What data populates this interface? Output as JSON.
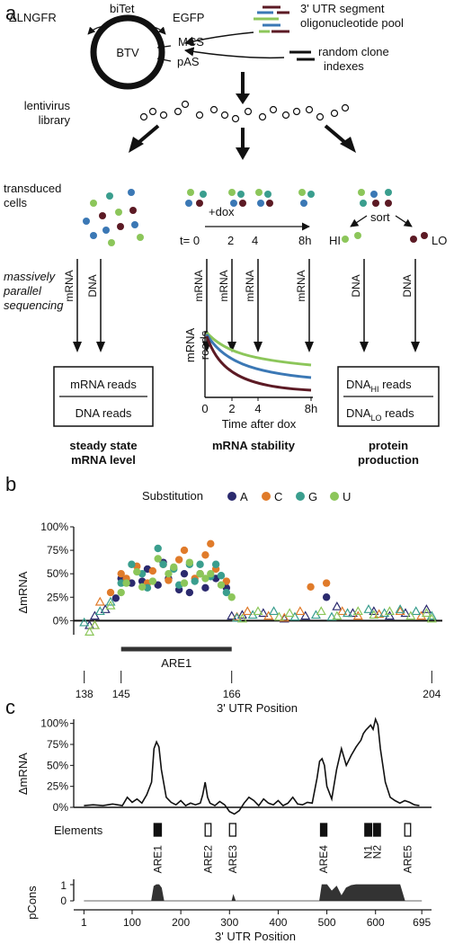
{
  "colors": {
    "A": "#2b2a6e",
    "C": "#e07b2a",
    "G": "#3a9e8e",
    "U": "#8cc65a",
    "maroon": "#5c1a24",
    "blue": "#3b78b5",
    "green": "#8cc65a",
    "black": "#111111"
  },
  "panel_a": {
    "label": "a",
    "vector": {
      "name": "BTV",
      "dlngfr": "ΔLNGFR",
      "bitet": "biTet",
      "egfp": "EGFP",
      "mcs": "MCS",
      "pas": "pAS"
    },
    "legend": {
      "utr_segment": "3' UTR segment",
      "oligo_pool": "oligonucleotide pool",
      "random_clone": "random clone",
      "indexes": "indexes"
    },
    "lentivirus": [
      "lentivirus",
      "library"
    ],
    "transduced": [
      "transduced",
      "cells"
    ],
    "mps": [
      "massively",
      "parallel",
      "sequencing"
    ],
    "dox": "+dox",
    "timepoints": [
      "t= 0",
      "2",
      "4",
      "8h"
    ],
    "sort": "sort",
    "hi": "HI",
    "lo": "LO",
    "seq_labels": {
      "mrna": "mRNA",
      "dna": "DNA"
    },
    "box_left": {
      "top": "mRNA reads",
      "bottom": "DNA reads"
    },
    "box_right": {
      "top_main": "DNA",
      "top_sub": "HI",
      "top_rest": " reads",
      "bottom_main": "DNA",
      "bottom_sub": "LO",
      "bottom_rest": " reads"
    },
    "decay_plot": {
      "ylabel": [
        "mRNA",
        "reads"
      ],
      "xticks": [
        "0",
        "2",
        "4",
        "8h"
      ],
      "xlabel": "Time after dox"
    },
    "outcomes": [
      [
        "steady state",
        "mRNA level"
      ],
      [
        "mRNA stability"
      ],
      [
        "protein",
        "production"
      ]
    ]
  },
  "panel_b": {
    "label": "b",
    "legend_title": "Substitution",
    "legend_items": [
      "A",
      "C",
      "G",
      "U"
    ]
  },
  "panel_c": {
    "label": "c",
    "elements_label": "Elements",
    "pcons_label": "pCons",
    "pcons_ticks": [
      "1",
      "0"
    ],
    "element_names": [
      "ARE1",
      "ARE2",
      "ARE3",
      "ARE4",
      "N1",
      "N2",
      "ARE5"
    ]
  },
  "chart_data": [
    {
      "type": "scatter",
      "title": "",
      "xlabel": "3' UTR Position",
      "ylabel": "ΔmRNA",
      "xticks": [
        "138",
        "145",
        "166",
        "204"
      ],
      "yticks": [
        "100%",
        "75%",
        "50%",
        "25%",
        "0%"
      ],
      "ylim": [
        -0.15,
        1.0
      ],
      "annotation": {
        "label": "ARE1",
        "start": 145,
        "end": 166
      },
      "marker_note": "filled circle = significant, open triangle = not significant",
      "series": [
        {
          "name": "A",
          "points": [
            [
              139,
              -0.05
            ],
            [
              140,
              0.05
            ],
            [
              142,
              0.12
            ],
            [
              144,
              0.24
            ],
            [
              145,
              0.45
            ],
            [
              147,
              0.4
            ],
            [
              149,
              0.42
            ],
            [
              150,
              0.55
            ],
            [
              152,
              0.38
            ],
            [
              153,
              0.62
            ],
            [
              154,
              0.45
            ],
            [
              156,
              0.33
            ],
            [
              157,
              0.5
            ],
            [
              158,
              0.3
            ],
            [
              160,
              0.5
            ],
            [
              161,
              0.35
            ],
            [
              163,
              0.45
            ],
            [
              165,
              0.35
            ],
            [
              166,
              0.05
            ],
            [
              168,
              0.06
            ],
            [
              172,
              0.08
            ],
            [
              176,
              0.02
            ],
            [
              180,
              0.05
            ],
            [
              184,
              0.25
            ],
            [
              186,
              0.15
            ],
            [
              189,
              0.08
            ],
            [
              193,
              0.1
            ],
            [
              196,
              0.05
            ],
            [
              199,
              0.08
            ],
            [
              203,
              0.12
            ]
          ]
        },
        {
          "name": "C",
          "points": [
            [
              140,
              -0.05
            ],
            [
              141,
              0.2
            ],
            [
              143,
              0.3
            ],
            [
              145,
              0.5
            ],
            [
              146,
              0.45
            ],
            [
              148,
              0.58
            ],
            [
              150,
              0.4
            ],
            [
              151,
              0.53
            ],
            [
              153,
              0.6
            ],
            [
              154,
              0.43
            ],
            [
              156,
              0.65
            ],
            [
              157,
              0.75
            ],
            [
              159,
              0.45
            ],
            [
              160,
              0.5
            ],
            [
              161,
              0.7
            ],
            [
              162,
              0.82
            ],
            [
              163,
              0.55
            ],
            [
              165,
              0.42
            ],
            [
              167,
              0.04
            ],
            [
              169,
              0.1
            ],
            [
              173,
              0.05
            ],
            [
              176,
              0.03
            ],
            [
              179,
              0.1
            ],
            [
              181,
              0.36
            ],
            [
              184,
              0.4
            ],
            [
              187,
              0.1
            ],
            [
              190,
              0.05
            ],
            [
              194,
              0.07
            ],
            [
              198,
              0.1
            ],
            [
              202,
              0.05
            ]
          ]
        },
        {
          "name": "G",
          "points": [
            [
              138,
              -0.02
            ],
            [
              141,
              0.1
            ],
            [
              143,
              0.2
            ],
            [
              145,
              0.4
            ],
            [
              147,
              0.6
            ],
            [
              149,
              0.5
            ],
            [
              150,
              0.35
            ],
            [
              152,
              0.77
            ],
            [
              153,
              0.6
            ],
            [
              155,
              0.55
            ],
            [
              156,
              0.38
            ],
            [
              158,
              0.6
            ],
            [
              159,
              0.42
            ],
            [
              160,
              0.6
            ],
            [
              162,
              0.47
            ],
            [
              163,
              0.6
            ],
            [
              164,
              0.48
            ],
            [
              165,
              0.3
            ],
            [
              167,
              0.03
            ],
            [
              170,
              0.06
            ],
            [
              174,
              0.1
            ],
            [
              178,
              0.04
            ],
            [
              182,
              0.06
            ],
            [
              185,
              0.04
            ],
            [
              188,
              0.08
            ],
            [
              192,
              0.12
            ],
            [
              195,
              0.08
            ],
            [
              198,
              0.12
            ],
            [
              201,
              0.1
            ],
            [
              204,
              0.05
            ]
          ]
        },
        {
          "name": "U",
          "points": [
            [
              139,
              -0.12
            ],
            [
              140,
              -0.05
            ],
            [
              143,
              0.16
            ],
            [
              145,
              0.3
            ],
            [
              146,
              0.4
            ],
            [
              148,
              0.52
            ],
            [
              149,
              0.36
            ],
            [
              151,
              0.42
            ],
            [
              152,
              0.66
            ],
            [
              154,
              0.5
            ],
            [
              155,
              0.57
            ],
            [
              157,
              0.4
            ],
            [
              158,
              0.62
            ],
            [
              160,
              0.5
            ],
            [
              161,
              0.45
            ],
            [
              162,
              0.5
            ],
            [
              164,
              0.38
            ],
            [
              166,
              0.25
            ],
            [
              168,
              0.02
            ],
            [
              171,
              0.1
            ],
            [
              175,
              0.04
            ],
            [
              177,
              0.08
            ],
            [
              183,
              0.1
            ],
            [
              186,
              0.05
            ],
            [
              190,
              0.1
            ],
            [
              193,
              0.06
            ],
            [
              196,
              0.1
            ],
            [
              200,
              0.05
            ],
            [
              203,
              0.08
            ],
            [
              204,
              0.02
            ]
          ]
        }
      ]
    },
    {
      "type": "line",
      "title": "",
      "xlabel": "3' UTR Position",
      "ylabel": "ΔmRNA",
      "xticks": [
        "1",
        "100",
        "200",
        "300",
        "400",
        "500",
        "600",
        "695"
      ],
      "yticks": [
        "100%",
        "75%",
        "50%",
        "25%",
        "0%"
      ],
      "ylim": [
        0,
        1.05
      ],
      "series": [
        {
          "name": "",
          "x": [
            1,
            20,
            40,
            60,
            80,
            90,
            100,
            110,
            120,
            130,
            140,
            145,
            150,
            155,
            160,
            170,
            180,
            190,
            200,
            210,
            220,
            230,
            240,
            245,
            250,
            255,
            260,
            270,
            280,
            290,
            300,
            310,
            320,
            330,
            340,
            350,
            360,
            370,
            380,
            390,
            400,
            410,
            420,
            430,
            440,
            450,
            460,
            470,
            475,
            480,
            485,
            490,
            495,
            500,
            510,
            520,
            530,
            540,
            550,
            560,
            570,
            575,
            580,
            585,
            590,
            595,
            600,
            605,
            610,
            620,
            630,
            640,
            650,
            660,
            670,
            680,
            690
          ],
          "y": [
            0.02,
            0.03,
            0.02,
            0.04,
            0.02,
            0.12,
            0.06,
            0.1,
            0.05,
            0.15,
            0.3,
            0.7,
            0.78,
            0.72,
            0.45,
            0.12,
            0.06,
            0.03,
            0.08,
            0.02,
            0.05,
            0.03,
            0.05,
            0.15,
            0.3,
            0.12,
            0.05,
            0.02,
            0.07,
            0.03,
            -0.05,
            -0.08,
            -0.04,
            0.05,
            0.12,
            0.08,
            0.02,
            0.1,
            0.05,
            0.03,
            0.08,
            0.02,
            0.05,
            0.12,
            0.04,
            0.03,
            0.06,
            0.05,
            0.2,
            0.35,
            0.55,
            0.58,
            0.5,
            0.25,
            0.1,
            0.45,
            0.7,
            0.5,
            0.62,
            0.72,
            0.8,
            0.88,
            0.92,
            0.95,
            0.98,
            0.93,
            1.05,
            0.98,
            0.7,
            0.3,
            0.12,
            0.08,
            0.05,
            0.08,
            0.06,
            0.03,
            0.02
          ]
        }
      ],
      "elements": [
        {
          "name": "ARE1",
          "start": 145,
          "end": 160,
          "filled": true
        },
        {
          "name": "ARE2",
          "start": 250,
          "end": 262,
          "filled": false
        },
        {
          "name": "ARE3",
          "start": 300,
          "end": 313,
          "filled": false
        },
        {
          "name": "ARE4",
          "start": 487,
          "end": 500,
          "filled": true
        },
        {
          "name": "N1",
          "start": 578,
          "end": 592,
          "filled": true
        },
        {
          "name": "N2",
          "start": 596,
          "end": 610,
          "filled": true
        },
        {
          "name": "ARE5",
          "start": 660,
          "end": 672,
          "filled": false
        }
      ],
      "pcons": {
        "label": "pCons",
        "x": [
          1,
          140,
          145,
          150,
          155,
          160,
          165,
          300,
          305,
          308,
          312,
          480,
          485,
          490,
          500,
          510,
          520,
          530,
          540,
          550,
          560,
          570,
          580,
          590,
          600,
          610,
          620,
          630,
          640,
          650,
          660,
          690,
          695
        ],
        "y": [
          0,
          0,
          0.9,
          1,
          1,
          0.8,
          0,
          0,
          0,
          0.35,
          0,
          0,
          0,
          1,
          1,
          0.6,
          0.9,
          0.3,
          0.8,
          0.95,
          1,
          1,
          1,
          1,
          1,
          1,
          1,
          1,
          1,
          1,
          0,
          0,
          0
        ]
      }
    }
  ]
}
